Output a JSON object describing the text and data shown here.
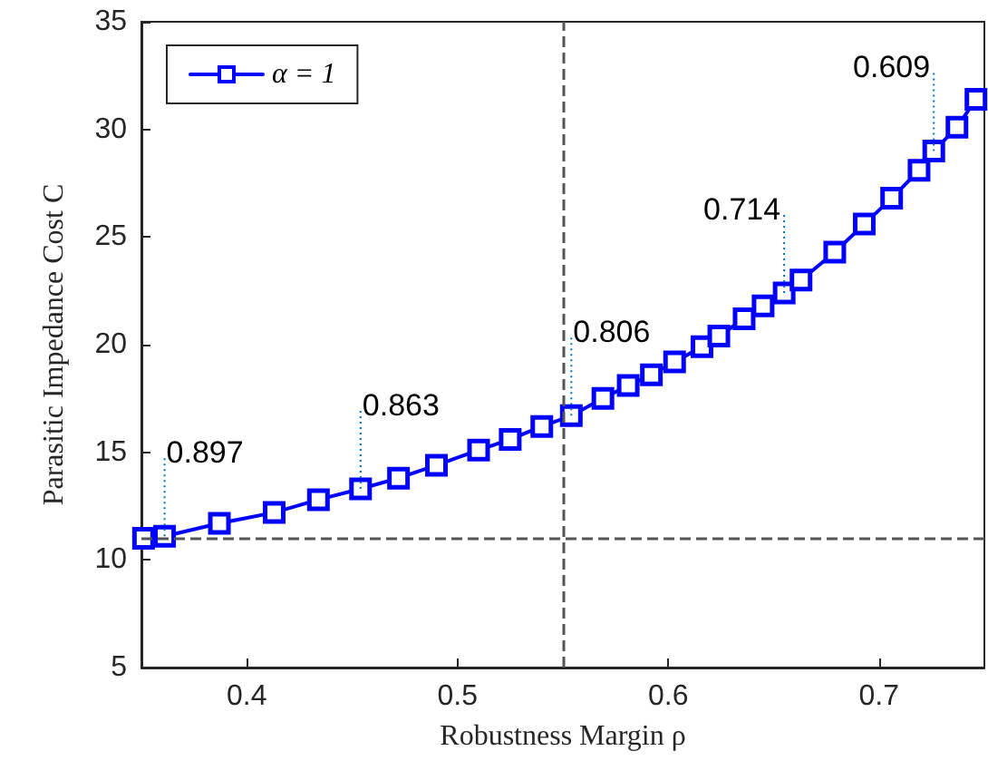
{
  "chart_data": {
    "type": "line",
    "xlabel": "Robustness Margin ρ",
    "ylabel": "Parasitic Impedance Cost C",
    "xlim": [
      0.35,
      0.75
    ],
    "xticks": [
      0.4,
      0.5,
      0.6,
      0.7
    ],
    "ylim": [
      5,
      35
    ],
    "yticks": [
      5,
      10,
      15,
      20,
      25,
      30,
      35
    ],
    "grid": false,
    "legend": "top left",
    "marker": "square",
    "line_style": "solid",
    "series": [
      {
        "name": "α = 1",
        "color": "#0000ff",
        "x": [
          0.351,
          0.361,
          0.387,
          0.413,
          0.434,
          0.454,
          0.472,
          0.49,
          0.51,
          0.525,
          0.54,
          0.554,
          0.569,
          0.581,
          0.592,
          0.603,
          0.616,
          0.624,
          0.636,
          0.645,
          0.655,
          0.663,
          0.679,
          0.693,
          0.706,
          0.719,
          0.726,
          0.737,
          0.746
        ],
        "values": [
          11,
          11.1,
          11.7,
          12.2,
          12.8,
          13.3,
          13.8,
          14.4,
          15.1,
          15.6,
          16.2,
          16.7,
          17.5,
          18.1,
          18.6,
          19.2,
          19.9,
          20.4,
          21.2,
          21.8,
          22.4,
          23,
          24.3,
          25.6,
          26.8,
          28.1,
          29,
          30.1,
          31.4
        ]
      }
    ],
    "ref_lines": [
      {
        "axis": "y",
        "value": 11,
        "color": "#555555",
        "line_style": "dashed"
      },
      {
        "axis": "x",
        "value": 0.55,
        "color": "#555555",
        "line_style": "dashed"
      }
    ],
    "annotations": [
      {
        "text": "0.897",
        "x": 0.361,
        "y": 11.1
      },
      {
        "text": "0.863",
        "x": 0.454,
        "y": 13.3
      },
      {
        "text": "0.806",
        "x": 0.554,
        "y": 16.7
      },
      {
        "text": "0.714",
        "x": 0.655,
        "y": 22.4
      },
      {
        "text": "0.609",
        "x": 0.726,
        "y": 29
      }
    ]
  }
}
